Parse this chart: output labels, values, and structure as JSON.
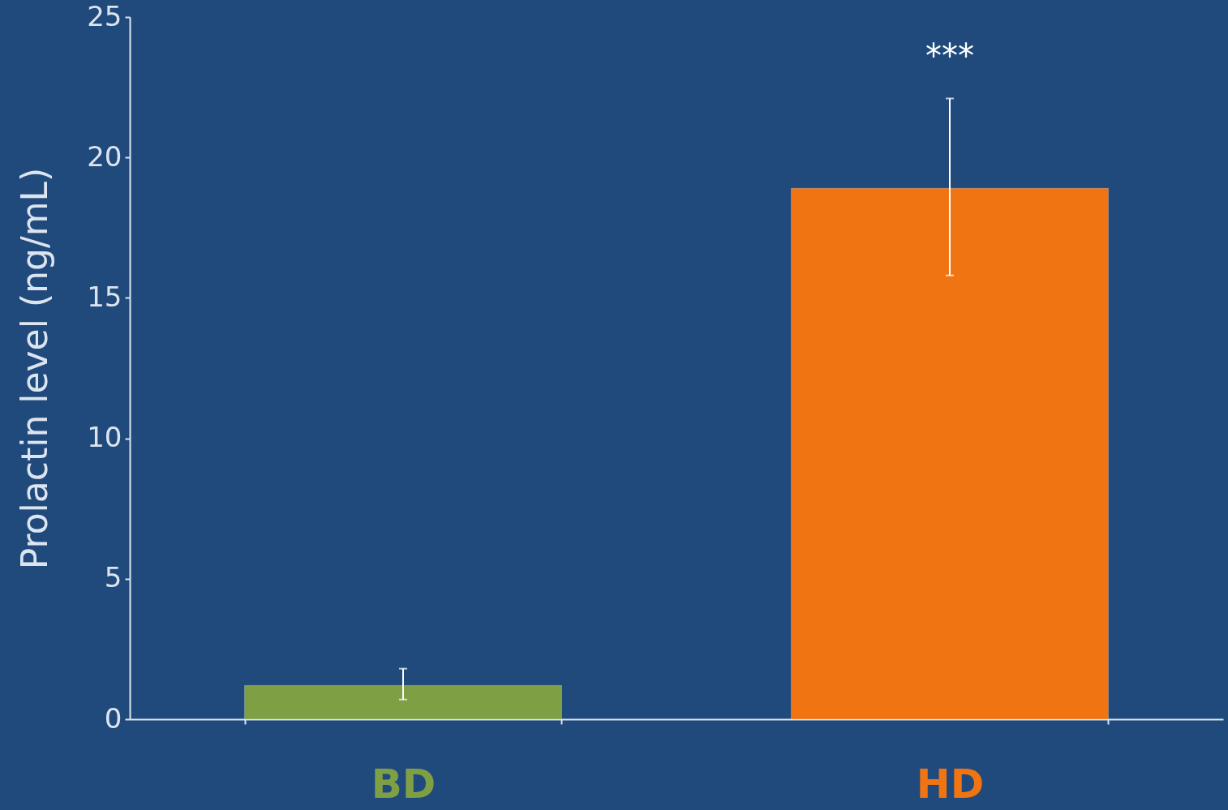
{
  "chart_data": {
    "type": "bar",
    "ylabel": "Prolactin level (ng/mL)",
    "categories": [
      "BD",
      "HD"
    ],
    "values": [
      1.2,
      18.9
    ],
    "colors": [
      "#7f9f45",
      "#f07412"
    ],
    "errors": [
      [
        0.7,
        1.8
      ],
      [
        15.8,
        22.1
      ]
    ],
    "ylim": [
      0,
      25
    ],
    "yticks": [
      0,
      5,
      10,
      15,
      20,
      25
    ],
    "grid": false,
    "annotations": [
      "***"
    ]
  }
}
